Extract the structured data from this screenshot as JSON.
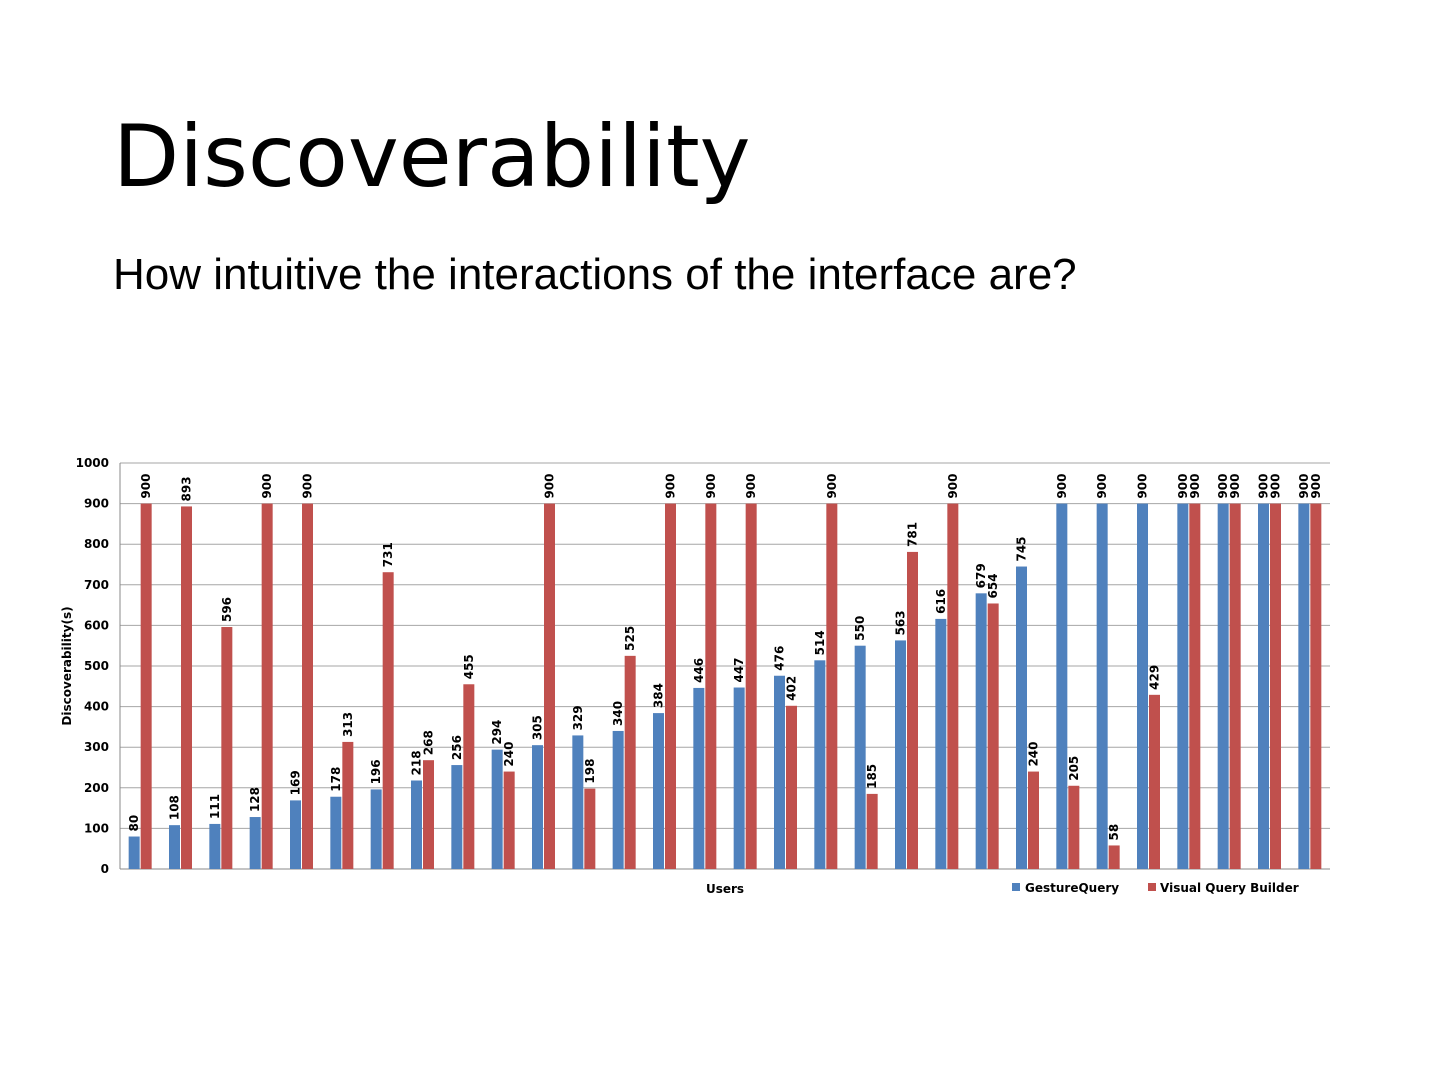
{
  "slide": {
    "title": "Discoverability",
    "subtitle": "How intuitive the interactions of the interface are?"
  },
  "chart_data": {
    "type": "bar",
    "title": "",
    "xlabel": "Users",
    "ylabel": "Discoverability(s)",
    "ylim": [
      0,
      1000
    ],
    "yticks": [
      0,
      100,
      200,
      300,
      400,
      500,
      600,
      700,
      800,
      900,
      1000
    ],
    "grid": true,
    "legend": "bottom-right",
    "series": [
      {
        "name": "GestureQuery",
        "color": "#4f81bd",
        "values": [
          80,
          108,
          111,
          128,
          169,
          178,
          196,
          218,
          256,
          294,
          305,
          329,
          340,
          384,
          446,
          447,
          476,
          514,
          550,
          563,
          616,
          679,
          745,
          900,
          900,
          900,
          900,
          900,
          900,
          900
        ]
      },
      {
        "name": "Visual Query Builder",
        "color": "#c0504d",
        "values": [
          900,
          893,
          596,
          900,
          900,
          313,
          731,
          268,
          455,
          240,
          900,
          198,
          525,
          900,
          900,
          900,
          402,
          900,
          185,
          781,
          900,
          654,
          240,
          205,
          58,
          429,
          900,
          900,
          900,
          900
        ]
      }
    ]
  }
}
